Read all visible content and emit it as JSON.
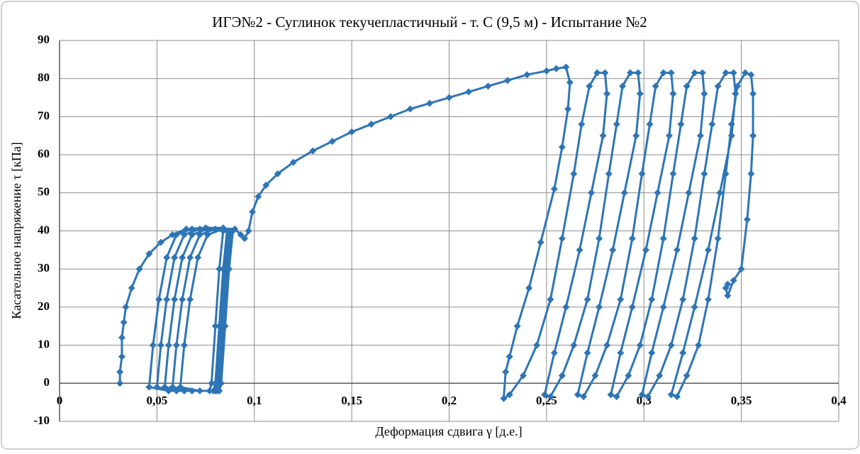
{
  "chart_data": {
    "type": "scatter",
    "title": "ИГЭ№2 - Суглинок текучепластичный - т. С (9,5 м) - Испытание №2",
    "xlabel": "Деформация сдвига γ [д.е.]",
    "ylabel": "Касательное напряжение τ [кПа]",
    "color": "#2e75b6",
    "grid": true,
    "xlim": [
      0,
      0.4
    ],
    "ylim": [
      -10,
      90
    ],
    "xticks": [
      0,
      {
        "value": 0.05,
        "label": "0,05"
      },
      {
        "value": 0.1,
        "label": "0,1"
      },
      {
        "value": 0.15,
        "label": "0,15"
      },
      {
        "value": 0.2,
        "label": "0,2"
      },
      {
        "value": 0.25,
        "label": "0,25"
      },
      {
        "value": 0.3,
        "label": "0,3"
      },
      {
        "value": 0.35,
        "label": "0,35"
      },
      {
        "value": 0.4,
        "label": "0,4"
      }
    ],
    "yticks": [
      -10,
      0,
      10,
      20,
      30,
      40,
      50,
      60,
      70,
      80,
      90
    ],
    "x": [
      0.031,
      0.031,
      0.032,
      0.032,
      0.033,
      0.034,
      0.037,
      0.041,
      0.046,
      0.052,
      0.058,
      0.065,
      0.075,
      0.084,
      0.084,
      0.082,
      0.08,
      0.078,
      0.077,
      0.056,
      0.046,
      0.048,
      0.051,
      0.055,
      0.06,
      0.068,
      0.086,
      0.084,
      0.082,
      0.08,
      0.079,
      0.06,
      0.05,
      0.052,
      0.055,
      0.059,
      0.064,
      0.072,
      0.087,
      0.085,
      0.083,
      0.081,
      0.08,
      0.064,
      0.054,
      0.056,
      0.059,
      0.063,
      0.068,
      0.076,
      0.088,
      0.086,
      0.084,
      0.082,
      0.081,
      0.068,
      0.058,
      0.06,
      0.063,
      0.067,
      0.072,
      0.08,
      0.089,
      0.087,
      0.085,
      0.083,
      0.082,
      0.072,
      0.062,
      0.064,
      0.067,
      0.071,
      0.076,
      0.084,
      0.09,
      0.093,
      0.095,
      0.097,
      0.099,
      0.102,
      0.106,
      0.112,
      0.12,
      0.13,
      0.14,
      0.15,
      0.16,
      0.17,
      0.18,
      0.19,
      0.2,
      0.21,
      0.22,
      0.23,
      0.24,
      0.25,
      0.255,
      0.26,
      0.262,
      0.261,
      0.258,
      0.254,
      0.247,
      0.241,
      0.235,
      0.231,
      0.229,
      0.228,
      0.231,
      0.238,
      0.245,
      0.252,
      0.258,
      0.264,
      0.268,
      0.272,
      0.276,
      0.28,
      0.281,
      0.279,
      0.273,
      0.267,
      0.26,
      0.254,
      0.249,
      0.252,
      0.258,
      0.264,
      0.271,
      0.277,
      0.282,
      0.286,
      0.289,
      0.293,
      0.297,
      0.298,
      0.296,
      0.29,
      0.284,
      0.277,
      0.271,
      0.266,
      0.269,
      0.275,
      0.281,
      0.288,
      0.294,
      0.299,
      0.303,
      0.306,
      0.31,
      0.314,
      0.315,
      0.313,
      0.307,
      0.301,
      0.294,
      0.288,
      0.283,
      0.286,
      0.292,
      0.298,
      0.304,
      0.31,
      0.315,
      0.319,
      0.322,
      0.326,
      0.33,
      0.331,
      0.329,
      0.323,
      0.317,
      0.31,
      0.304,
      0.299,
      0.302,
      0.308,
      0.314,
      0.32,
      0.326,
      0.331,
      0.335,
      0.338,
      0.342,
      0.346,
      0.347,
      0.345,
      0.339,
      0.333,
      0.326,
      0.32,
      0.314,
      0.317,
      0.322,
      0.328,
      0.333,
      0.338,
      0.342,
      0.345,
      0.348,
      0.352,
      0.355,
      0.356,
      0.356,
      0.355,
      0.353,
      0.35,
      0.346,
      0.343,
      0.342,
      0.343
    ],
    "values": [
      0,
      3,
      7,
      12,
      16,
      20,
      25,
      30,
      34,
      37,
      39,
      40.5,
      40.8,
      40.8,
      40,
      30,
      15,
      0,
      -2,
      -2,
      -1,
      10,
      22,
      33,
      39,
      40.5,
      40,
      30,
      15,
      0,
      -2,
      -2,
      -1,
      10,
      22,
      33,
      39,
      40.5,
      40,
      30,
      15,
      0,
      -2,
      -2,
      -1,
      10,
      22,
      33,
      39,
      40.5,
      40,
      30,
      15,
      0,
      -2,
      -2,
      -1,
      10,
      22,
      33,
      39,
      40.5,
      40,
      30,
      15,
      0,
      -2,
      -2,
      -1,
      10,
      22,
      33,
      39,
      40.5,
      40.5,
      39,
      38,
      40,
      45,
      49,
      52,
      55,
      58,
      61,
      63.5,
      66,
      68,
      70,
      72,
      73.5,
      75,
      76.5,
      78,
      79.5,
      81,
      82,
      82.6,
      83,
      79,
      72,
      62,
      51,
      37,
      25,
      15,
      7,
      3,
      -4,
      -3,
      2,
      10,
      22,
      38,
      55,
      68,
      78,
      81.5,
      81.5,
      76,
      65,
      50,
      35,
      20,
      8,
      -3,
      -3.5,
      2,
      10,
      22,
      38,
      55,
      68,
      78,
      81.5,
      81.5,
      76,
      65,
      50,
      35,
      20,
      8,
      -3,
      -3.5,
      2,
      10,
      22,
      38,
      55,
      68,
      78,
      81.5,
      81.5,
      76,
      65,
      50,
      35,
      20,
      8,
      -3,
      -3.5,
      2,
      10,
      22,
      38,
      55,
      68,
      78,
      81.5,
      81.5,
      76,
      65,
      50,
      35,
      20,
      8,
      -3,
      -3.5,
      2,
      10,
      22,
      38,
      55,
      68,
      78,
      81.5,
      81.5,
      76,
      65,
      50,
      35,
      20,
      8,
      -3,
      -3.5,
      2,
      10,
      22,
      38,
      55,
      68,
      78,
      81.5,
      81,
      76,
      65,
      55,
      43,
      30,
      27,
      23,
      25,
      26
    ]
  }
}
